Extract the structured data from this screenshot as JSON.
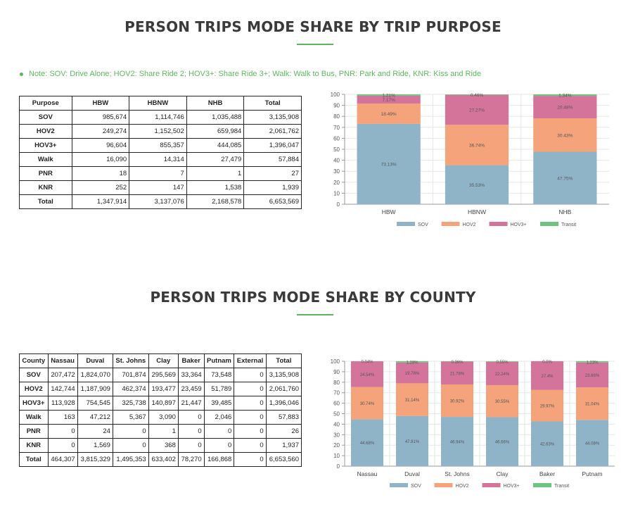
{
  "section1": {
    "title": "PERSON TRIPS MODE SHARE BY TRIP PURPOSE",
    "note": "Note: SOV: Drive Alone; HOV2: Share Ride 2; HOV3+: Share Ride 3+; Walk: Walk to Bus, PNR: Park and Ride, KNR: Kiss and Ride",
    "table": {
      "headers": [
        "Purpose",
        "HBW",
        "HBNW",
        "NHB",
        "Total"
      ],
      "rows": [
        [
          "SOV",
          "985,674",
          "1,114,746",
          "1,035,488",
          "3,135,908"
        ],
        [
          "HOV2",
          "249,274",
          "1,152,502",
          "659,984",
          "2,061,762"
        ],
        [
          "HOV3+",
          "96,604",
          "855,357",
          "444,085",
          "1,396,047"
        ],
        [
          "Walk",
          "16,090",
          "14,314",
          "27,479",
          "57,884"
        ],
        [
          "PNR",
          "18",
          "7",
          "1",
          "27"
        ],
        [
          "KNR",
          "252",
          "147",
          "1,538",
          "1,939"
        ],
        [
          "Total",
          "1,347,914",
          "3,137,076",
          "2,168,578",
          "6,653,569"
        ]
      ]
    }
  },
  "section2": {
    "title": "PERSON TRIPS MODE SHARE BY COUNTY",
    "table": {
      "headers": [
        "County",
        "Nassau",
        "Duval",
        "St. Johns",
        "Clay",
        "Baker",
        "Putnam",
        "External",
        "Total"
      ],
      "rows": [
        [
          "SOV",
          "207,472",
          "1,824,070",
          "701,874",
          "295,569",
          "33,364",
          "73,548",
          "0",
          "3,135,908"
        ],
        [
          "HOV2",
          "142,744",
          "1,187,909",
          "462,374",
          "193,477",
          "23,459",
          "51,789",
          "0",
          "2,061,760"
        ],
        [
          "HOV3+",
          "113,928",
          "754,545",
          "325,738",
          "140,897",
          "21,447",
          "39,485",
          "0",
          "1,396,046"
        ],
        [
          "Walk",
          "163",
          "47,212",
          "5,367",
          "3,090",
          "0",
          "2,046",
          "0",
          "57,883"
        ],
        [
          "PNR",
          "0",
          "24",
          "0",
          "1",
          "0",
          "0",
          "0",
          "26"
        ],
        [
          "KNR",
          "0",
          "1,569",
          "0",
          "368",
          "0",
          "0",
          "0",
          "1,937"
        ],
        [
          "Total",
          "464,307",
          "3,815,329",
          "1,495,353",
          "633,402",
          "78,270",
          "166,868",
          "0",
          "6,653,560"
        ]
      ]
    }
  },
  "chart_data": [
    {
      "type": "bar",
      "stacked": true,
      "categories": [
        "HBW",
        "HBNW",
        "NHB"
      ],
      "ylim": [
        0,
        100
      ],
      "yticks": [
        0,
        10,
        20,
        30,
        40,
        50,
        60,
        70,
        80,
        90,
        100
      ],
      "grid": true,
      "legend_position": "bottom",
      "series": [
        {
          "name": "SOV",
          "color": "#8fb4c8",
          "values": [
            73.13,
            35.53,
            47.75
          ],
          "labels": [
            "73.13%",
            "35.53%",
            "47.75%"
          ]
        },
        {
          "name": "HOV2",
          "color": "#f4a37a",
          "values": [
            18.49,
            36.74,
            30.43
          ],
          "labels": [
            "18.49%",
            "36.74%",
            "30.43%"
          ]
        },
        {
          "name": "HOV3+",
          "color": "#d5749a",
          "values": [
            7.17,
            27.27,
            20.48
          ],
          "labels": [
            "7.17%",
            "27.27%",
            "20.48%"
          ]
        },
        {
          "name": "Transit",
          "color": "#6cc47f",
          "values": [
            1.21,
            0.46,
            1.34
          ],
          "labels": [
            "1.21%",
            "0.46%",
            "1.34%"
          ]
        }
      ]
    },
    {
      "type": "bar",
      "stacked": true,
      "categories": [
        "Nassau",
        "Duval",
        "St. Johns",
        "Clay",
        "Baker",
        "Putnam"
      ],
      "ylim": [
        0,
        100
      ],
      "yticks": [
        0,
        10,
        20,
        30,
        40,
        50,
        60,
        70,
        80,
        90,
        100
      ],
      "grid": true,
      "legend_position": "bottom",
      "series": [
        {
          "name": "SOV",
          "color": "#8fb4c8",
          "values": [
            44.68,
            47.81,
            46.94,
            46.66,
            42.63,
            44.08
          ],
          "labels": [
            "44.68%",
            "47.81%",
            "46.94%",
            "46.66%",
            "42.63%",
            "44.08%"
          ]
        },
        {
          "name": "HOV2",
          "color": "#f4a37a",
          "values": [
            30.74,
            31.14,
            30.92,
            30.55,
            29.97,
            31.04
          ],
          "labels": [
            "30.74%",
            "31.14%",
            "30.92%",
            "30.55%",
            "29.97%",
            "31.04%"
          ]
        },
        {
          "name": "HOV3+",
          "color": "#d5749a",
          "values": [
            24.54,
            19.78,
            21.78,
            22.24,
            27.4,
            23.66
          ],
          "labels": [
            "24.54%",
            "19.78%",
            "21.78%",
            "22.24%",
            "27.4%",
            "23.66%"
          ]
        },
        {
          "name": "Transit",
          "color": "#6cc47f",
          "values": [
            0.04,
            1.28,
            0.36,
            0.55,
            0.0,
            1.23
          ],
          "labels": [
            "0.04%",
            "1.28%",
            "0.36%",
            "0.55%",
            "0.0%",
            "1.23%"
          ]
        }
      ]
    }
  ]
}
